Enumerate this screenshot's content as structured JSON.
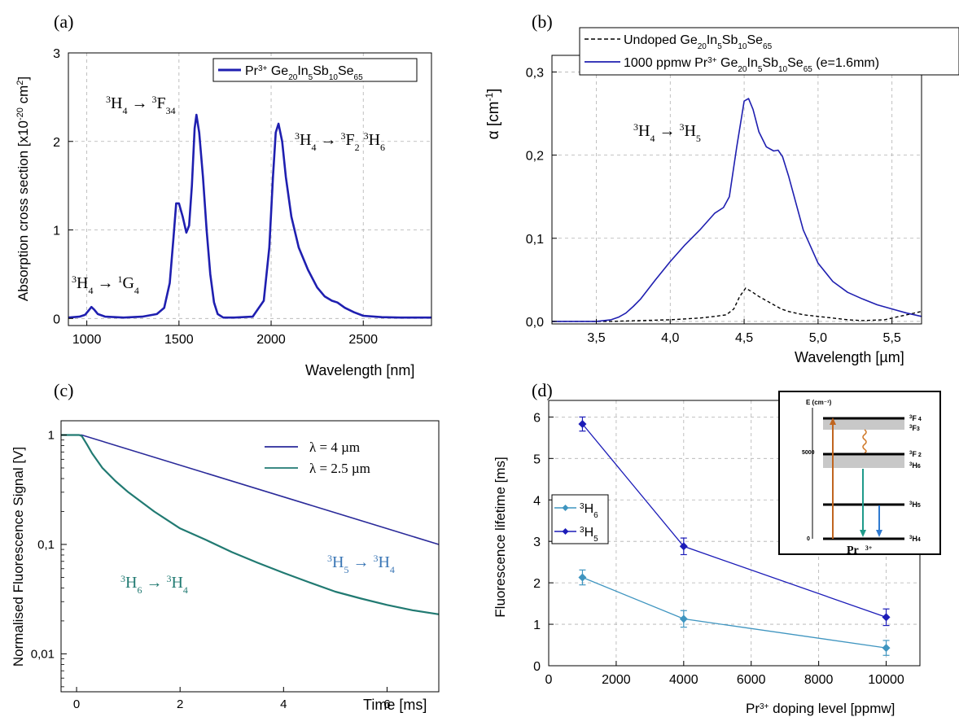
{
  "panel_labels": [
    "(a)",
    "(b)",
    "(c)",
    "(d)"
  ],
  "colors": {
    "pr_blue": "#1f1fb0",
    "navy": "#2a2a9a",
    "teal": "#217a72",
    "h6_series": "#3f95c0",
    "h5_series": "#1c1cb8",
    "grid": "#b0b0b0",
    "axis": "#000000"
  },
  "chart_data": [
    {
      "id": "a",
      "type": "line",
      "xlabel": "Wavelength [nm]",
      "ylabel": "Absorption cross section [x10^-20 cm^2]",
      "ylabel_parts": {
        "base": "Absorption cross section [x10",
        "exp1": "-20",
        "mid": " cm",
        "exp2": "2",
        "end": "]"
      },
      "xlim": [
        900,
        2870
      ],
      "ylim": [
        -0.08,
        3.0
      ],
      "xticks": [
        1000,
        1500,
        2000,
        2500
      ],
      "yticks": [
        0,
        1,
        2,
        3
      ],
      "xtick_labels": [
        "1000",
        "1500",
        "2000",
        "2500"
      ],
      "ytick_labels": [
        "0",
        "1",
        "2",
        "3"
      ],
      "grid": true,
      "legend_position": "top-right",
      "series": [
        {
          "name": "Pr3+ Ge20In5Sb10Se65",
          "name_parts": {
            "a": "Pr",
            "a_sup": "3+",
            "b": " Ge",
            "b_sub": "20",
            "c": "In",
            "c_sub": "5",
            "d": "Sb",
            "d_sub": "10",
            "e": "Se",
            "e_sub": "65"
          },
          "x": [
            900,
            960,
            990,
            1010,
            1025,
            1040,
            1060,
            1100,
            1200,
            1300,
            1380,
            1420,
            1450,
            1470,
            1485,
            1500,
            1520,
            1540,
            1555,
            1570,
            1585,
            1595,
            1610,
            1630,
            1650,
            1670,
            1690,
            1710,
            1740,
            1800,
            1900,
            1960,
            1990,
            2010,
            2025,
            2040,
            2060,
            2080,
            2110,
            2150,
            2200,
            2250,
            2290,
            2330,
            2360,
            2400,
            2450,
            2500,
            2600,
            2700,
            2870
          ],
          "y": [
            0.01,
            0.02,
            0.04,
            0.09,
            0.13,
            0.1,
            0.05,
            0.02,
            0.01,
            0.02,
            0.05,
            0.12,
            0.4,
            0.9,
            1.3,
            1.3,
            1.15,
            0.97,
            1.05,
            1.5,
            2.15,
            2.3,
            2.1,
            1.6,
            1.0,
            0.5,
            0.18,
            0.05,
            0.01,
            0.01,
            0.02,
            0.2,
            0.8,
            1.6,
            2.1,
            2.2,
            2.0,
            1.6,
            1.15,
            0.8,
            0.55,
            0.35,
            0.25,
            0.2,
            0.18,
            0.12,
            0.07,
            0.03,
            0.015,
            0.01,
            0.01
          ]
        }
      ],
      "annotations": [
        {
          "parts": [
            "3",
            "H",
            "4",
            " → ",
            "3",
            "F",
            "34"
          ]
        },
        {
          "parts": [
            "3",
            "H",
            "4",
            " → ",
            "3",
            "F",
            "2",
            " ",
            "3",
            "H",
            "6"
          ]
        },
        {
          "parts": [
            "3",
            "H",
            "4",
            " → ",
            "1",
            "G",
            "4"
          ]
        }
      ]
    },
    {
      "id": "b",
      "type": "line",
      "xlabel": "Wavelength [µm]",
      "ylabel": "α [cm^-1]",
      "ylabel_parts": {
        "base": "α [cm",
        "exp": "-1",
        "end": "]"
      },
      "xlim": [
        3.2,
        5.7
      ],
      "ylim": [
        -0.003,
        0.32
      ],
      "xticks": [
        3.5,
        4.0,
        4.5,
        5.0,
        5.5
      ],
      "yticks": [
        0.0,
        0.1,
        0.2,
        0.3
      ],
      "xtick_labels": [
        "3,5",
        "4,0",
        "4,5",
        "5,0",
        "5,5"
      ],
      "ytick_labels": [
        "0,0",
        "0,1",
        "0,2",
        "0,3"
      ],
      "grid": true,
      "legend_position": "top-right",
      "series": [
        {
          "name": "Undoped Ge20In5Sb10Se65",
          "name_parts": {
            "a": "Undoped Ge",
            "a_sub": "20",
            "b": "In",
            "b_sub": "5",
            "c": "Sb",
            "c_sub": "10",
            "d": "Se",
            "d_sub": "65"
          },
          "style": "dashed",
          "x": [
            3.2,
            3.6,
            4.0,
            4.2,
            4.3,
            4.38,
            4.43,
            4.47,
            4.51,
            4.55,
            4.6,
            4.65,
            4.7,
            4.75,
            4.8,
            4.9,
            5.0,
            5.1,
            5.2,
            5.3,
            5.45,
            5.55,
            5.7
          ],
          "y": [
            0.0,
            0.0,
            0.002,
            0.004,
            0.006,
            0.008,
            0.015,
            0.03,
            0.04,
            0.036,
            0.03,
            0.025,
            0.02,
            0.015,
            0.012,
            0.008,
            0.006,
            0.004,
            0.002,
            0.001,
            0.002,
            0.006,
            0.012
          ]
        },
        {
          "name": "1000 ppmw Pr3+ Ge20In5Sb10Se65 (e=1.6mm)",
          "name_parts": {
            "a": "1000 ppmw Pr",
            "a_sup": "3+",
            "b": " Ge",
            "b_sub": "20",
            "c": "In",
            "c_sub": "5",
            "d": "Sb",
            "d_sub": "10",
            "e": "Se",
            "e_sub": "65",
            "f": " (e=1.6mm)"
          },
          "style": "solid",
          "x": [
            3.2,
            3.5,
            3.6,
            3.65,
            3.7,
            3.75,
            3.8,
            3.9,
            4.0,
            4.1,
            4.2,
            4.3,
            4.36,
            4.4,
            4.45,
            4.5,
            4.53,
            4.56,
            4.6,
            4.65,
            4.7,
            4.73,
            4.76,
            4.8,
            4.9,
            5.0,
            5.1,
            5.2,
            5.3,
            5.4,
            5.5,
            5.6,
            5.7
          ],
          "y": [
            0.0,
            0.0,
            0.002,
            0.005,
            0.01,
            0.018,
            0.027,
            0.05,
            0.072,
            0.092,
            0.11,
            0.13,
            0.137,
            0.15,
            0.21,
            0.265,
            0.268,
            0.255,
            0.228,
            0.21,
            0.205,
            0.206,
            0.198,
            0.175,
            0.11,
            0.07,
            0.048,
            0.035,
            0.027,
            0.02,
            0.015,
            0.01,
            0.006
          ]
        }
      ],
      "annotations": [
        {
          "parts": [
            "3",
            "H",
            "4",
            " → ",
            "3",
            "H",
            "5"
          ]
        }
      ]
    },
    {
      "id": "c",
      "type": "line",
      "xlabel": "Time [ms]",
      "ylabel": "Normalised Fluorescence Signal [V]",
      "xlim": [
        -0.3,
        7.0
      ],
      "ylim_log": [
        0.0045,
        1.35
      ],
      "yscale": "log",
      "xticks": [
        0,
        2,
        4,
        6
      ],
      "yticks": [
        0.01,
        0.1,
        1
      ],
      "xtick_labels": [
        "0",
        "2",
        "4",
        "6"
      ],
      "ytick_labels": [
        "0,01",
        "0,1",
        "1"
      ],
      "grid": false,
      "legend_position": "top-right",
      "series": [
        {
          "name": "λ = 4 µm",
          "x": [
            -0.3,
            0.1,
            7.0
          ],
          "y": [
            1.0,
            1.0,
            0.1
          ]
        },
        {
          "name": "λ = 2.5 µm",
          "x": [
            -0.3,
            0.0,
            0.05,
            0.1,
            0.2,
            0.3,
            0.5,
            0.75,
            1.0,
            1.5,
            2.0,
            2.5,
            3.0,
            3.5,
            4.0,
            4.5,
            5.0,
            5.5,
            6.0,
            6.5,
            7.0
          ],
          "y": [
            1.0,
            1.0,
            1.0,
            0.98,
            0.82,
            0.68,
            0.5,
            0.38,
            0.3,
            0.2,
            0.14,
            0.11,
            0.085,
            0.068,
            0.055,
            0.045,
            0.037,
            0.032,
            0.028,
            0.025,
            0.023
          ]
        }
      ],
      "annotations": [
        {
          "parts": [
            "3",
            "H",
            "5",
            " → ",
            "3",
            "H",
            "4"
          ]
        },
        {
          "parts": [
            "3",
            "H",
            "6",
            " → ",
            "3",
            "H",
            "4"
          ]
        }
      ]
    },
    {
      "id": "d",
      "type": "line",
      "xlabel": "Pr^3+ doping level [ppmw]",
      "xlabel_parts": {
        "base": "Pr",
        "sup": "3+",
        "end": " doping level [ppmw]"
      },
      "ylabel": "Fluorescence lifetime [ms]",
      "xlim": [
        0,
        11000
      ],
      "ylim": [
        0,
        6.4
      ],
      "xticks": [
        0,
        2000,
        4000,
        6000,
        8000,
        10000
      ],
      "yticks": [
        0,
        1,
        2,
        3,
        4,
        5,
        6
      ],
      "xtick_labels": [
        "0",
        "2000",
        "4000",
        "6000",
        "8000",
        "10000"
      ],
      "ytick_labels": [
        "0",
        "1",
        "2",
        "3",
        "4",
        "5",
        "6"
      ],
      "grid": true,
      "legend_position": "left",
      "series": [
        {
          "name": "3H6",
          "name_parts": {
            "sup": "3",
            "base": "H",
            "sub": "6"
          },
          "x": [
            1000,
            4000,
            10000
          ],
          "y": [
            2.13,
            1.13,
            0.43
          ],
          "err": [
            0.18,
            0.2,
            0.18
          ]
        },
        {
          "name": "3H5",
          "name_parts": {
            "sup": "3",
            "base": "H",
            "sub": "5"
          },
          "x": [
            1000,
            4000,
            10000
          ],
          "y": [
            5.83,
            2.88,
            1.17
          ],
          "err": [
            0.17,
            0.2,
            0.2
          ]
        }
      ],
      "inset": {
        "ylabel": "E (cm⁻¹)",
        "ticks": [
          "0",
          "5000"
        ],
        "levels": [
          {
            "parts": [
              "3",
              "F",
              "4"
            ]
          },
          {
            "parts": [
              "3",
              "F",
              "3"
            ]
          },
          {
            "parts": [
              "3",
              "F",
              "2"
            ]
          },
          {
            "parts": [
              "3",
              "H",
              "6"
            ]
          },
          {
            "parts": [
              "3",
              "H",
              "5"
            ]
          },
          {
            "parts": [
              "3",
              "H",
              "4"
            ]
          }
        ],
        "ion": {
          "base": "Pr",
          "sup": "3+"
        }
      }
    }
  ]
}
